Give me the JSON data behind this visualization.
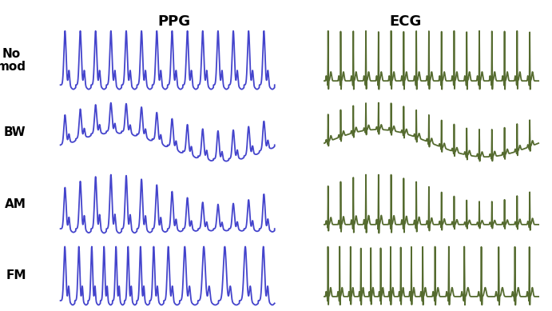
{
  "ppg_color": "#4444cc",
  "ecg_color": "#556b2f",
  "title_ppg": "PPG",
  "title_ecg": "ECG",
  "row_labels": [
    "No\nmod",
    "BW",
    "AM",
    "FM"
  ],
  "label_fontsize": 11,
  "title_fontsize": 13,
  "background_color": "#ffffff",
  "n_points": 3000,
  "ppg_beats": 14,
  "ecg_beats": 17,
  "resp_cycles": 1.0,
  "line_width": 1.3,
  "bw_amplitude": 0.5,
  "am_depth": 0.55,
  "fm_depth": 0.28
}
